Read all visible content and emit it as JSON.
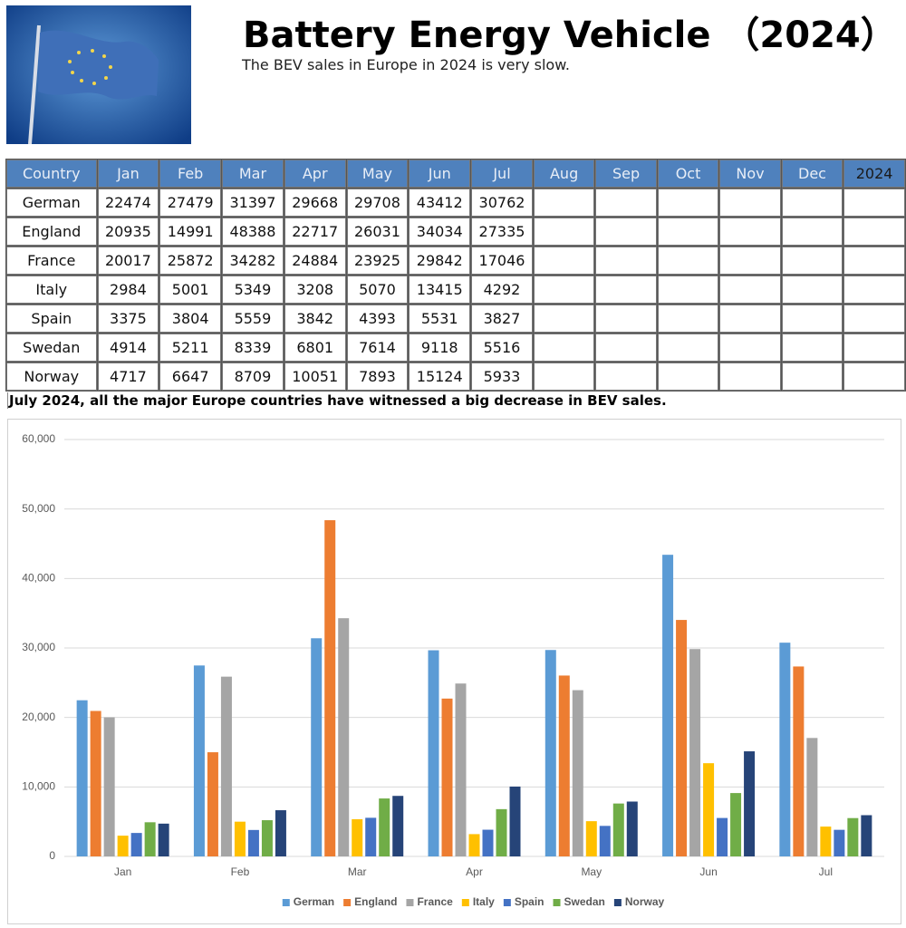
{
  "header": {
    "title": "Battery Energy Vehicle （2024）",
    "subtitle": "The BEV sales in Europe in 2024 is very slow."
  },
  "table": {
    "columns": [
      "Country",
      "Jan",
      "Feb",
      "Mar",
      "Apr",
      "May",
      "Jun",
      "Jul",
      "Aug",
      "Sep",
      "Oct",
      "Nov",
      "Dec",
      "2024"
    ],
    "rows": [
      [
        "German",
        22474,
        27479,
        31397,
        29668,
        29708,
        43412,
        30762
      ],
      [
        "England",
        20935,
        14991,
        48388,
        22717,
        26031,
        34034,
        27335
      ],
      [
        "France",
        20017,
        25872,
        34282,
        24884,
        23925,
        29842,
        17046
      ],
      [
        "Italy",
        2984,
        5001,
        5349,
        3208,
        5070,
        13415,
        4292
      ],
      [
        "Spain",
        3375,
        3804,
        5559,
        3842,
        4393,
        5531,
        3827
      ],
      [
        "Swedan",
        4914,
        5211,
        8339,
        6801,
        7614,
        9118,
        5516
      ],
      [
        "Norway",
        4717,
        6647,
        8709,
        10051,
        7893,
        15124,
        5933
      ]
    ]
  },
  "note": "July 2024, all the major Europe countries have witnessed a big decrease in BEV sales.",
  "chart_data": {
    "type": "bar",
    "categories": [
      "Jan",
      "Feb",
      "Mar",
      "Apr",
      "May",
      "Jun",
      "Jul"
    ],
    "series": [
      {
        "name": "German",
        "color": "#5b9bd5",
        "values": [
          22474,
          27479,
          31397,
          29668,
          29708,
          43412,
          30762
        ]
      },
      {
        "name": "England",
        "color": "#ed7d31",
        "values": [
          20935,
          14991,
          48388,
          22717,
          26031,
          34034,
          27335
        ]
      },
      {
        "name": "France",
        "color": "#a5a5a5",
        "values": [
          20017,
          25872,
          34282,
          24884,
          23925,
          29842,
          17046
        ]
      },
      {
        "name": "Italy",
        "color": "#ffc000",
        "values": [
          2984,
          5001,
          5349,
          3208,
          5070,
          13415,
          4292
        ]
      },
      {
        "name": "Spain",
        "color": "#4472c4",
        "values": [
          3375,
          3804,
          5559,
          3842,
          4393,
          5531,
          3827
        ]
      },
      {
        "name": "Swedan",
        "color": "#70ad47",
        "values": [
          4914,
          5211,
          8339,
          6801,
          7614,
          9118,
          5516
        ]
      },
      {
        "name": "Norway",
        "color": "#264478",
        "values": [
          4717,
          6647,
          8709,
          10051,
          7893,
          15124,
          5933
        ]
      }
    ],
    "ylim": [
      0,
      60000
    ],
    "yticks": [
      0,
      {
        "value": 10000,
        "label": "10,000"
      },
      {
        "value": 20000,
        "label": "20,000"
      },
      {
        "value": 30000,
        "label": "30,000"
      },
      {
        "value": 40000,
        "label": "40,000"
      },
      {
        "value": 50000,
        "label": "50,000"
      },
      {
        "value": 60000,
        "label": "60,000"
      }
    ],
    "grid": true,
    "legend": "bottom"
  }
}
